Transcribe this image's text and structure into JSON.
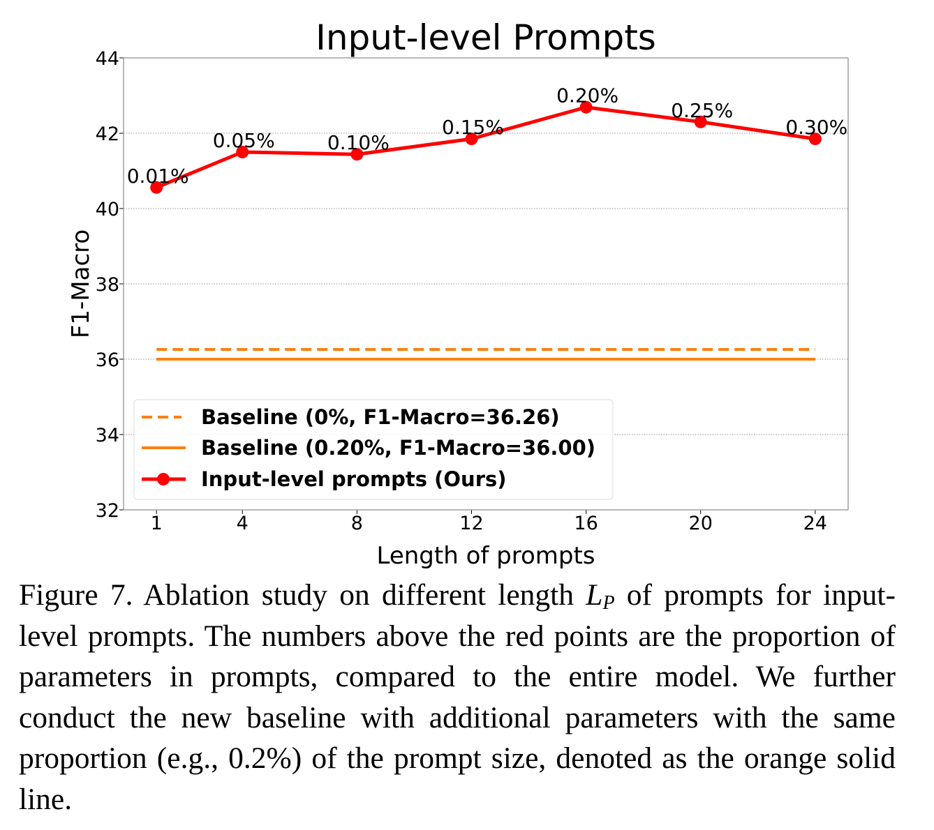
{
  "chart_data": {
    "type": "line",
    "title": "Input-level Prompts",
    "xlabel": "Length of prompts",
    "ylabel": "F1-Macro",
    "xlim": [
      -0.15,
      25.15
    ],
    "ylim": [
      32,
      44
    ],
    "x_ticks": [
      1,
      4,
      8,
      12,
      16,
      20,
      24
    ],
    "y_ticks": [
      32,
      34,
      36,
      38,
      40,
      42,
      44
    ],
    "grid": "horizontal dotted",
    "legend_position": "lower-left",
    "series": [
      {
        "name": "Baseline (0%, F1-Macro=36.26)",
        "style": "dashed",
        "color": "#ff7f0e",
        "x": [
          1,
          24
        ],
        "y": [
          36.26,
          36.26
        ]
      },
      {
        "name": "Baseline (0.20%, F1-Macro=36.00)",
        "style": "solid",
        "color": "#ff7f0e",
        "x": [
          1,
          24
        ],
        "y": [
          36.0,
          36.0
        ]
      },
      {
        "name": "Input-level prompts (Ours)",
        "style": "line-marker",
        "color": "#ff0000",
        "x": [
          1,
          4,
          8,
          12,
          16,
          20,
          24
        ],
        "y": [
          40.56,
          41.5,
          41.44,
          41.85,
          42.69,
          42.3,
          41.85
        ],
        "labels": [
          "0.01%",
          "0.05%",
          "0.10%",
          "0.15%",
          "0.20%",
          "0.25%",
          "0.30%"
        ]
      }
    ]
  },
  "caption": {
    "prefix": "Figure 7.  Ablation study on different length ",
    "math_var": "L",
    "math_sub": "P",
    "suffix": " of prompts for input-level prompts. The numbers above the red points are the proportion of parameters in prompts, compared to the entire model. We further conduct the new baseline with additional parameters with the same proportion (e.g., 0.2%) of the prompt size, denoted as the orange solid line."
  }
}
